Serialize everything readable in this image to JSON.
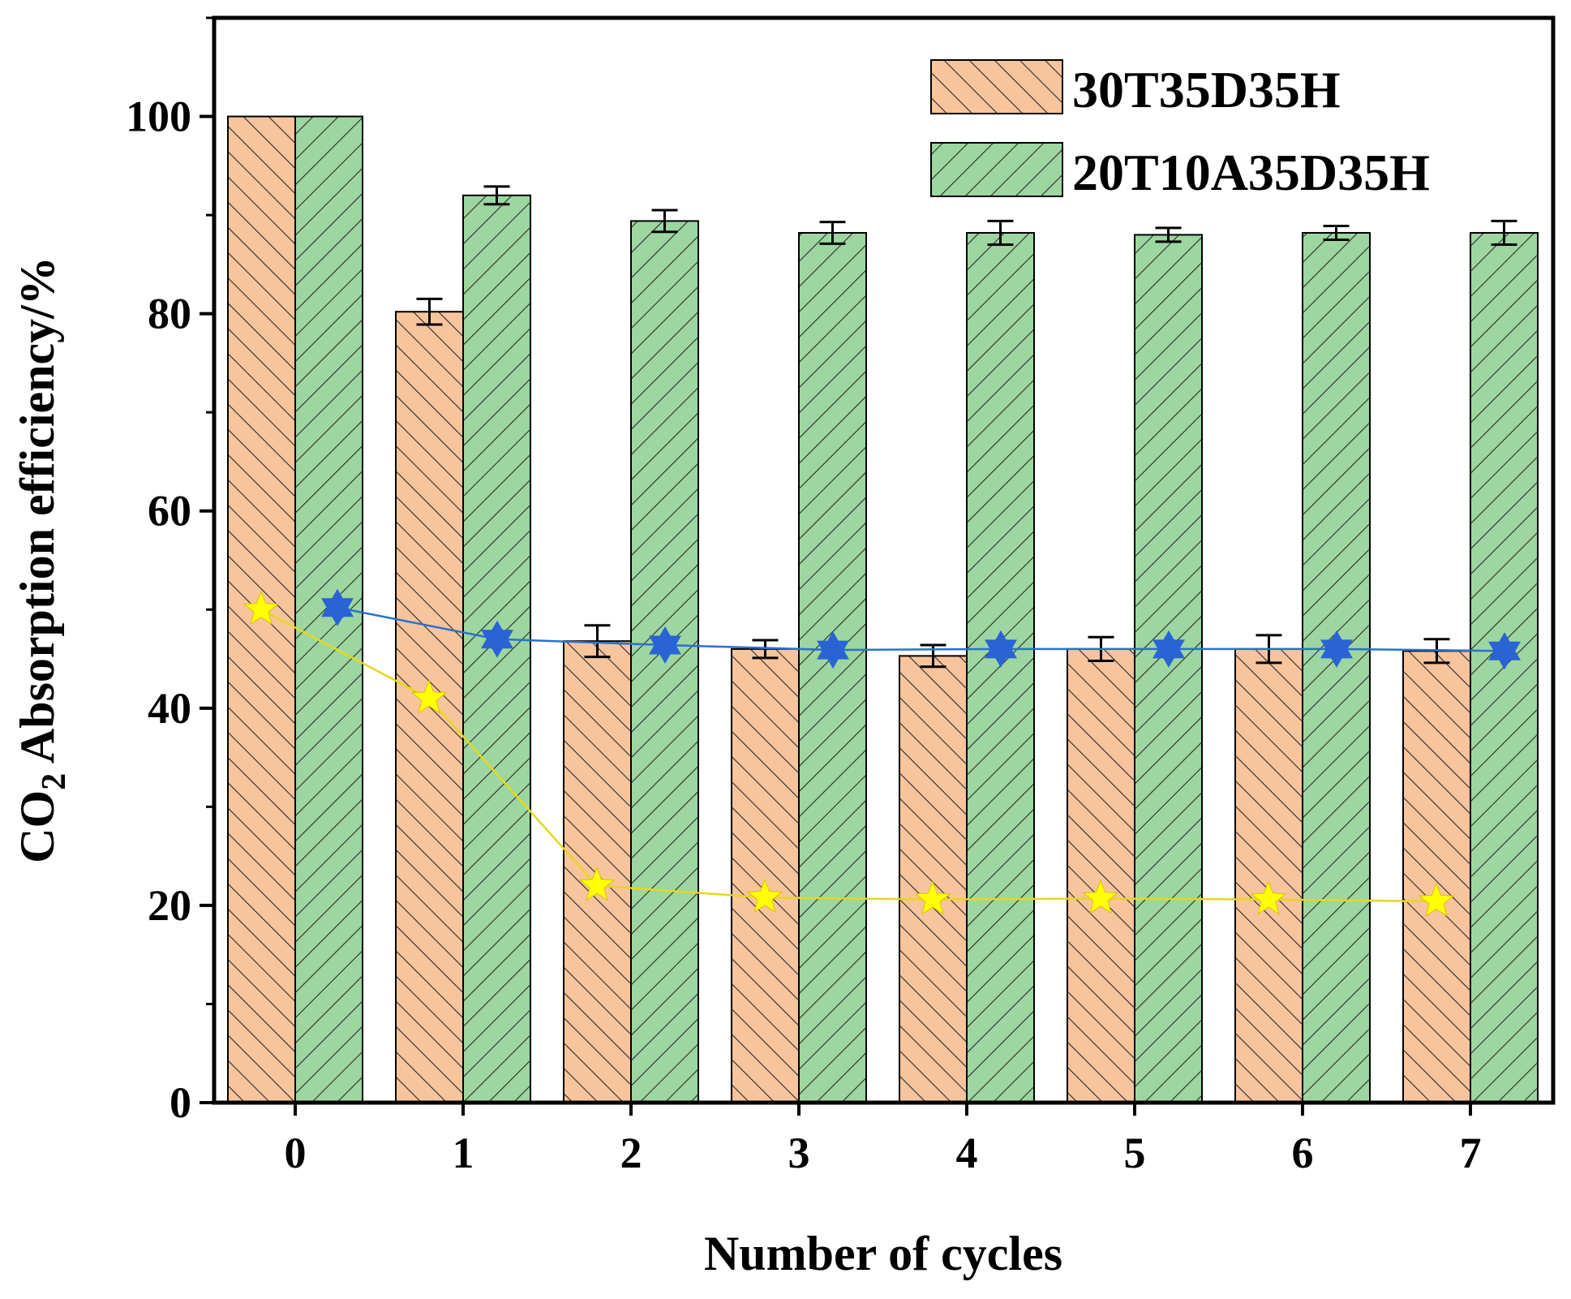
{
  "chart_data": {
    "type": "bar",
    "xlabel": "Number of cycles",
    "ylabel": {
      "prefix": "CO",
      "subscript": "2",
      "suffix": " Absorption efficiency/%"
    },
    "categories": [
      "0",
      "1",
      "2",
      "3",
      "4",
      "5",
      "6",
      "7"
    ],
    "ylim": [
      0,
      110
    ],
    "yticks": [
      0,
      20,
      40,
      60,
      80,
      100
    ],
    "grid": false,
    "legend_position": "top-right",
    "series": [
      {
        "name": "30T35D35H",
        "kind": "bar",
        "color": "#f8c49c",
        "hatch": "forward-diagonal",
        "values": [
          100,
          80.2,
          46.8,
          46.0,
          45.3,
          46.0,
          46.0,
          45.8
        ],
        "errors": [
          0,
          1.3,
          1.6,
          0.9,
          1.1,
          1.2,
          1.4,
          1.2
        ]
      },
      {
        "name": "20T10A35D35H",
        "kind": "bar",
        "color": "#9dd6a0",
        "hatch": "back-diagonal",
        "values": [
          100,
          92.0,
          89.4,
          88.2,
          88.2,
          88.0,
          88.2,
          88.2
        ],
        "errors": [
          0,
          0.9,
          1.1,
          1.1,
          1.2,
          0.7,
          0.7,
          1.2
        ]
      },
      {
        "kind": "line",
        "marker": "star",
        "color": "#ffff00",
        "line_color": "#e6d81e",
        "values": [
          50.0,
          41.0,
          22.0,
          20.8,
          20.6,
          20.7,
          20.6,
          20.4
        ]
      },
      {
        "kind": "line",
        "marker": "hexagram",
        "color": "#2a63d4",
        "line_color": "#2a70d0",
        "values": [
          50.2,
          47.0,
          46.4,
          45.9,
          46.0,
          46.0,
          46.0,
          45.8
        ]
      }
    ]
  }
}
